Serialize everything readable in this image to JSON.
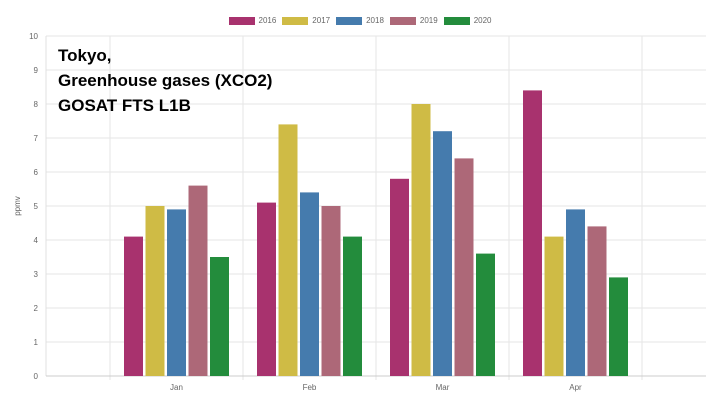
{
  "title_lines": [
    "Tokyo,",
    "Greenhouse gases (XCO2)",
    "GOSAT FTS L1B"
  ],
  "chart_data": {
    "type": "bar",
    "title": "Tokyo, Greenhouse gases (XCO2) GOSAT FTS L1B",
    "xlabel": "",
    "ylabel": "ppmv",
    "ylim": [
      0,
      10
    ],
    "yticks": [
      "0",
      "1",
      "2",
      "3",
      "4",
      "5",
      "6",
      "7",
      "8",
      "9",
      "10"
    ],
    "categories": [
      "Jan",
      "Feb",
      "Mar",
      "Apr"
    ],
    "series": [
      {
        "name": "2016",
        "color": "#a8326e",
        "values": [
          4.1,
          5.1,
          5.8,
          8.4
        ]
      },
      {
        "name": "2017",
        "color": "#cfbb45",
        "values": [
          5.0,
          7.4,
          8.0,
          4.1
        ]
      },
      {
        "name": "2018",
        "color": "#457bad",
        "values": [
          4.9,
          5.4,
          7.2,
          4.9
        ]
      },
      {
        "name": "2019",
        "color": "#ad6878",
        "values": [
          5.6,
          5.0,
          6.4,
          4.4
        ]
      },
      {
        "name": "2020",
        "color": "#238c3c",
        "values": [
          3.5,
          4.1,
          3.6,
          2.9
        ]
      }
    ],
    "grid": true,
    "legend_position": "top-center"
  }
}
